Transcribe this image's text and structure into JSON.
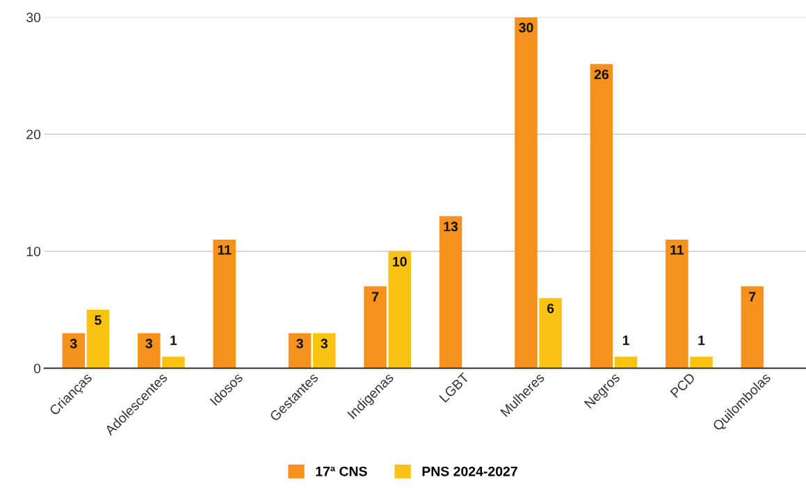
{
  "chart_data": {
    "type": "bar",
    "categories": [
      "Crianças",
      "Adolescentes",
      "Idosos",
      "Gestantes",
      "Indigenas",
      "LGBT",
      "Mulheres",
      "Negros",
      "PCD",
      "Quilombolas"
    ],
    "series": [
      {
        "name": "17ª CNS",
        "color": "#f5921e",
        "values": [
          3,
          3,
          11,
          3,
          7,
          13,
          30,
          26,
          11,
          7
        ]
      },
      {
        "name": "PNS 2024-2027",
        "color": "#fcc212",
        "values": [
          5,
          1,
          null,
          3,
          10,
          null,
          6,
          1,
          1,
          null
        ]
      }
    ],
    "ylim": [
      0,
      30
    ],
    "yticks": [
      0,
      10,
      20,
      30
    ],
    "grid": "y",
    "legend": "bottom",
    "data_labels": true
  }
}
